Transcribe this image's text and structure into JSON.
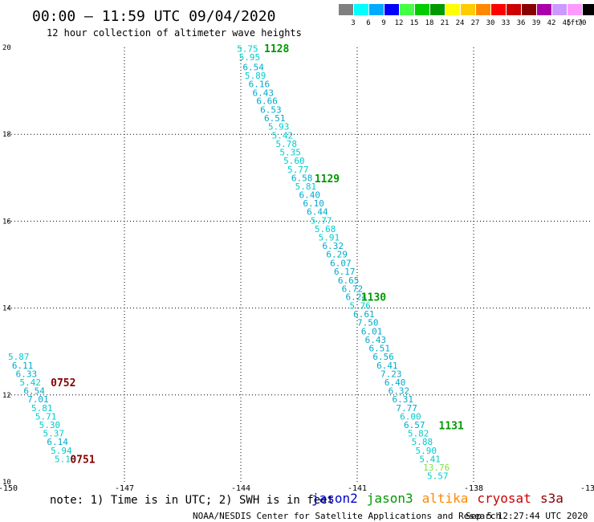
{
  "header": {
    "title": "00:00 – 11:59 UTC 09/04/2020",
    "subtitle": "12 hour collection of altimeter wave heights"
  },
  "legend": {
    "unit_label": "(ft)",
    "entries": [
      {
        "label": "3",
        "color": "#808080"
      },
      {
        "label": "6",
        "color": "#00ffff"
      },
      {
        "label": "9",
        "color": "#00aaff"
      },
      {
        "label": "12",
        "color": "#0000ff"
      },
      {
        "label": "15",
        "color": "#44ff44"
      },
      {
        "label": "18",
        "color": "#00cc00"
      },
      {
        "label": "21",
        "color": "#009900"
      },
      {
        "label": "24",
        "color": "#ffff00"
      },
      {
        "label": "27",
        "color": "#ffcc00"
      },
      {
        "label": "30",
        "color": "#ff8800"
      },
      {
        "label": "33",
        "color": "#ff0000"
      },
      {
        "label": "36",
        "color": "#cc0000"
      },
      {
        "label": "39",
        "color": "#880000"
      },
      {
        "label": "42",
        "color": "#aa00aa"
      },
      {
        "label": "45",
        "color": "#cc99ff"
      },
      {
        "label": "70",
        "color": "#ff99ff"
      },
      {
        "label": "",
        "color": "#000000"
      }
    ]
  },
  "footer": {
    "note": "note: 1) Time is in UTC; 2) SWH is in feet",
    "credit": "NOAA/NESDIS Center for Satellite Applications and Research",
    "timestamp": "Sep  5 12:27:44 UTC 2020",
    "satellites": [
      {
        "name": "jason2",
        "color": "#0000cc"
      },
      {
        "name": "jason3",
        "color": "#009900"
      },
      {
        "name": "altika",
        "color": "#ff8800"
      },
      {
        "name": "cryosat",
        "color": "#cc0000"
      },
      {
        "name": "s3a",
        "color": "#880000"
      }
    ]
  },
  "chart_data": {
    "type": "scatter",
    "xlim": [
      -150,
      -135
    ],
    "ylim": [
      10,
      20
    ],
    "x_ticks": [
      "-150",
      "-147",
      "-144",
      "-141",
      "-138",
      "-135"
    ],
    "y_ticks": [
      "10",
      "12",
      "14",
      "16",
      "18",
      "20"
    ],
    "grid": true,
    "tracks": [
      {
        "satellite": "jason3",
        "color": "#00aacc",
        "points": [
          {
            "x": -144.1,
            "y": 19.97,
            "v": "5.75",
            "c": "#00cccc"
          },
          {
            "x": -144.05,
            "y": 19.78,
            "v": "5.95",
            "c": "#00cccc"
          },
          {
            "x": -143.95,
            "y": 19.55,
            "v": "6.54",
            "c": "#00aacc"
          },
          {
            "x": -143.9,
            "y": 19.35,
            "v": "5.89",
            "c": "#00cccc"
          },
          {
            "x": -143.8,
            "y": 19.16,
            "v": "6.16",
            "c": "#00aacc"
          },
          {
            "x": -143.7,
            "y": 18.96,
            "v": "6.43",
            "c": "#00aacc"
          },
          {
            "x": -143.6,
            "y": 18.77,
            "v": "6.66",
            "c": "#00aacc"
          },
          {
            "x": -143.5,
            "y": 18.57,
            "v": "6.53",
            "c": "#00aacc"
          },
          {
            "x": -143.4,
            "y": 18.37,
            "v": "6.51",
            "c": "#00aacc"
          },
          {
            "x": -143.3,
            "y": 18.18,
            "v": "5.93",
            "c": "#00cccc"
          },
          {
            "x": -143.2,
            "y": 17.98,
            "v": "5.42",
            "c": "#00cccc"
          },
          {
            "x": -143.1,
            "y": 17.78,
            "v": "5.78",
            "c": "#00cccc"
          },
          {
            "x": -143.0,
            "y": 17.59,
            "v": "5.35",
            "c": "#00cccc"
          },
          {
            "x": -142.9,
            "y": 17.39,
            "v": "5.60",
            "c": "#00cccc"
          },
          {
            "x": -142.8,
            "y": 17.19,
            "v": "5.77",
            "c": "#00cccc"
          },
          {
            "x": -142.7,
            "y": 17.0,
            "v": "6.58",
            "c": "#00aacc"
          },
          {
            "x": -142.6,
            "y": 16.8,
            "v": "5.81",
            "c": "#00cccc"
          },
          {
            "x": -142.5,
            "y": 16.61,
            "v": "6.40",
            "c": "#00aacc"
          },
          {
            "x": -142.4,
            "y": 16.41,
            "v": "6.10",
            "c": "#00aacc"
          },
          {
            "x": -142.3,
            "y": 16.22,
            "v": "6.44",
            "c": "#00aacc"
          },
          {
            "x": -142.2,
            "y": 16.02,
            "v": "5.77",
            "c": "#00cccc"
          },
          {
            "x": -142.1,
            "y": 15.82,
            "v": "5.68",
            "c": "#00cccc"
          },
          {
            "x": -142.0,
            "y": 15.63,
            "v": "5.91",
            "c": "#00cccc"
          },
          {
            "x": -141.9,
            "y": 15.43,
            "v": "6.32",
            "c": "#00aacc"
          },
          {
            "x": -141.8,
            "y": 15.24,
            "v": "6.29",
            "c": "#00aacc"
          },
          {
            "x": -141.7,
            "y": 15.04,
            "v": "6.07",
            "c": "#00aacc"
          },
          {
            "x": -141.6,
            "y": 14.84,
            "v": "6.17",
            "c": "#00aacc"
          },
          {
            "x": -141.5,
            "y": 14.64,
            "v": "6.65",
            "c": "#00aacc"
          },
          {
            "x": -141.4,
            "y": 14.45,
            "v": "6.72",
            "c": "#00aacc"
          },
          {
            "x": -141.3,
            "y": 14.26,
            "v": "6.24",
            "c": "#00aacc"
          },
          {
            "x": -141.2,
            "y": 14.06,
            "v": "5.76",
            "c": "#00cccc"
          },
          {
            "x": -141.1,
            "y": 13.86,
            "v": "6.61",
            "c": "#00aacc"
          },
          {
            "x": -141.0,
            "y": 13.67,
            "v": "7.50",
            "c": "#00aacc"
          },
          {
            "x": -140.9,
            "y": 13.47,
            "v": "6.01",
            "c": "#00aacc"
          },
          {
            "x": -140.8,
            "y": 13.27,
            "v": "6.43",
            "c": "#00aacc"
          },
          {
            "x": -140.7,
            "y": 13.08,
            "v": "6.51",
            "c": "#00aacc"
          },
          {
            "x": -140.6,
            "y": 12.88,
            "v": "6.56",
            "c": "#00aacc"
          },
          {
            "x": -140.5,
            "y": 12.68,
            "v": "6.41",
            "c": "#00aacc"
          },
          {
            "x": -140.4,
            "y": 12.49,
            "v": "7.23",
            "c": "#00aacc"
          },
          {
            "x": -140.3,
            "y": 12.29,
            "v": "6.40",
            "c": "#00aacc"
          },
          {
            "x": -140.2,
            "y": 12.1,
            "v": "6.32",
            "c": "#00aacc"
          },
          {
            "x": -140.1,
            "y": 11.9,
            "v": "6.31",
            "c": "#00aacc"
          },
          {
            "x": -140.0,
            "y": 11.7,
            "v": "7.77",
            "c": "#00aacc"
          },
          {
            "x": -139.9,
            "y": 11.51,
            "v": "6.00",
            "c": "#00cccc"
          },
          {
            "x": -139.8,
            "y": 11.31,
            "v": "6.57",
            "c": "#00aacc"
          },
          {
            "x": -139.7,
            "y": 11.12,
            "v": "5.82",
            "c": "#00cccc"
          },
          {
            "x": -139.6,
            "y": 10.92,
            "v": "5.88",
            "c": "#00cccc"
          },
          {
            "x": -139.5,
            "y": 10.72,
            "v": "5.90",
            "c": "#00cccc"
          },
          {
            "x": -139.4,
            "y": 10.53,
            "v": "5.41",
            "c": "#00cccc"
          },
          {
            "x": -139.3,
            "y": 10.33,
            "v": "13.76",
            "c": "#88dd44"
          },
          {
            "x": -139.2,
            "y": 10.14,
            "v": "5.57",
            "c": "#00cccc"
          }
        ],
        "time_labels": [
          {
            "x": -143.4,
            "y": 19.98,
            "v": "1128"
          },
          {
            "x": -142.1,
            "y": 16.99,
            "v": "1129"
          },
          {
            "x": -140.9,
            "y": 14.26,
            "v": "1130"
          },
          {
            "x": -138.9,
            "y": 11.3,
            "v": "1131"
          }
        ]
      },
      {
        "satellite": "s3a",
        "color": "#00cccc",
        "points": [
          {
            "x": -150.0,
            "y": 12.88,
            "v": "5.87",
            "c": "#00cccc"
          },
          {
            "x": -149.9,
            "y": 12.68,
            "v": "6.11",
            "c": "#00aacc"
          },
          {
            "x": -149.8,
            "y": 12.49,
            "v": "6.33",
            "c": "#00aacc"
          },
          {
            "x": -149.7,
            "y": 12.29,
            "v": "5.42",
            "c": "#00cccc"
          },
          {
            "x": -149.6,
            "y": 12.1,
            "v": "6.54",
            "c": "#00aacc"
          },
          {
            "x": -149.5,
            "y": 11.9,
            "v": "7.01",
            "c": "#00aacc"
          },
          {
            "x": -149.4,
            "y": 11.7,
            "v": "5.81",
            "c": "#00cccc"
          },
          {
            "x": -149.3,
            "y": 11.51,
            "v": "5.71",
            "c": "#00cccc"
          },
          {
            "x": -149.2,
            "y": 11.31,
            "v": "5.30",
            "c": "#00cccc"
          },
          {
            "x": -149.1,
            "y": 11.12,
            "v": "5.37",
            "c": "#00cccc"
          },
          {
            "x": -149.0,
            "y": 10.92,
            "v": "6.14",
            "c": "#00aacc"
          },
          {
            "x": -148.9,
            "y": 10.72,
            "v": "5.94",
            "c": "#00cccc"
          },
          {
            "x": -148.8,
            "y": 10.53,
            "v": "5.18",
            "c": "#00cccc"
          }
        ],
        "time_labels": [
          {
            "x": -148.9,
            "y": 12.29,
            "v": "0752"
          },
          {
            "x": -148.4,
            "y": 10.53,
            "v": "0751"
          }
        ]
      }
    ]
  }
}
